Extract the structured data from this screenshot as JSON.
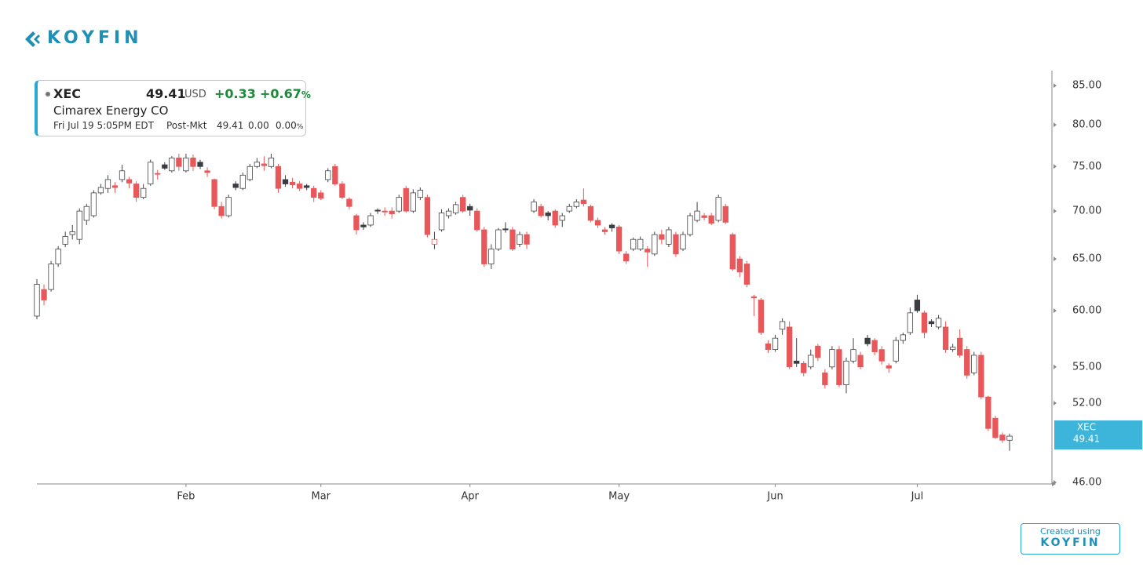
{
  "header": {
    "logo": "KOYFIN"
  },
  "quote": {
    "symbol": "XEC",
    "price": "49.41",
    "currency": "USD",
    "change": "+0.33",
    "change_pct": "+0.67",
    "pct_sign": "%",
    "name": "Cimarex Energy CO",
    "time": "Fri Jul 19 5:05PM EDT",
    "session": "Post-Mkt",
    "post_price": "49.41",
    "post_change": "0.00",
    "post_change_pct": "0.00",
    "post_pct_sign": "%"
  },
  "footer": {
    "created": "Created using",
    "logo": "KOYFIN"
  },
  "chart_data": {
    "type": "candlestick",
    "log_scale": true,
    "up_color": "#ffffff",
    "down_color": "#e8585b",
    "neutral_color": "#3a3d42",
    "axis_color": "#8a8a8a",
    "ylim": [
      46,
      87
    ],
    "yticks": [
      {
        "value": 85,
        "label": "85.00"
      },
      {
        "value": 80,
        "label": "80.00"
      },
      {
        "value": 75,
        "label": "75.00"
      },
      {
        "value": 70,
        "label": "70.00"
      },
      {
        "value": 65,
        "label": "65.00"
      },
      {
        "value": 60,
        "label": "60.00"
      },
      {
        "value": 55,
        "label": "55.00"
      },
      {
        "value": 52,
        "label": "52.00"
      },
      {
        "value": 46,
        "label": "46.00"
      }
    ],
    "last_label": {
      "name": "XEC",
      "value": 49.41
    },
    "categories": [
      null,
      null,
      null,
      null,
      null,
      null,
      null,
      null,
      null,
      null,
      null,
      null,
      null,
      null,
      null,
      null,
      null,
      null,
      null,
      null,
      null,
      "Feb",
      null,
      null,
      null,
      null,
      null,
      null,
      null,
      null,
      null,
      null,
      null,
      null,
      null,
      null,
      null,
      null,
      null,
      null,
      "Mar",
      null,
      null,
      null,
      null,
      null,
      null,
      null,
      null,
      null,
      null,
      null,
      null,
      null,
      null,
      null,
      null,
      null,
      null,
      null,
      null,
      "Apr",
      null,
      null,
      null,
      null,
      null,
      null,
      null,
      null,
      null,
      null,
      null,
      null,
      null,
      null,
      null,
      null,
      null,
      null,
      null,
      null,
      "May",
      null,
      null,
      null,
      null,
      null,
      null,
      null,
      null,
      null,
      null,
      null,
      null,
      null,
      null,
      null,
      null,
      null,
      null,
      null,
      null,
      null,
      "Jun",
      null,
      null,
      null,
      null,
      null,
      null,
      null,
      null,
      null,
      null,
      null,
      null,
      null,
      null,
      null,
      null,
      null,
      null,
      null,
      "Jul",
      null,
      null,
      null,
      null,
      null,
      null,
      null,
      null,
      null,
      null,
      null,
      null,
      null
    ],
    "open": [
      59.5,
      62,
      62,
      64.5,
      66.5,
      67.5,
      67,
      69,
      69.5,
      72,
      72.5,
      72.8,
      73.5,
      73.5,
      73,
      71.5,
      73,
      74.2,
      75.2,
      74.5,
      76,
      74.5,
      76,
      75.5,
      74.5,
      73.5,
      70.5,
      69.5,
      73,
      72.5,
      73.5,
      75,
      75.3,
      75,
      75,
      73.5,
      73.2,
      73,
      72.8,
      72.5,
      72,
      73.5,
      75,
      73,
      71.3,
      69.5,
      68.5,
      68.5,
      70.1,
      70,
      70,
      70,
      72.5,
      70,
      71.5,
      71.5,
      66.5,
      68,
      69.5,
      69.8,
      71.5,
      70.5,
      70,
      68,
      64.5,
      66,
      68.1,
      68,
      66.5,
      67.5,
      70,
      70.5,
      69.8,
      70,
      69,
      70,
      70.5,
      71.2,
      70.5,
      69,
      68,
      68.5,
      68.3,
      65.5,
      66,
      66,
      66,
      65.5,
      67.5,
      66.5,
      67.5,
      66,
      67.5,
      69,
      69.5,
      69.5,
      69,
      70.5,
      67.5,
      65,
      64.5,
      61.3,
      61,
      57,
      56.5,
      58.3,
      58.5,
      55.5,
      55.3,
      55,
      56.8,
      54.5,
      55,
      56.5,
      53.5,
      55.5,
      56,
      57.5,
      57.3,
      56.5,
      55.1,
      55.5,
      57.3,
      58,
      61,
      59.8,
      59,
      58.5,
      58.5,
      56.5,
      57.5,
      56.5,
      54.5,
      56,
      52.5,
      50.8,
      49.5,
      49.1
    ],
    "high": [
      63,
      62.5,
      64.8,
      66.3,
      67.8,
      68.5,
      70.3,
      70.8,
      72.3,
      73,
      74,
      73.2,
      75.2,
      73.8,
      73.3,
      73,
      75.8,
      74.6,
      75.5,
      76.2,
      76.5,
      76.5,
      76.4,
      75.8,
      74.9,
      73.6,
      71,
      71.8,
      73.3,
      74.3,
      75.3,
      76,
      76.2,
      76.5,
      75.3,
      74,
      73.7,
      73.3,
      73,
      72.8,
      72.3,
      74.8,
      75.3,
      73.3,
      71.5,
      69.7,
      68.8,
      69.8,
      70.3,
      70.4,
      70.4,
      71.8,
      72.8,
      72.4,
      72.6,
      71.8,
      67.8,
      70.2,
      70.3,
      71,
      71.8,
      70.8,
      70.3,
      68.3,
      66.5,
      68.2,
      68.8,
      68.3,
      67.8,
      67.8,
      71.3,
      70.8,
      70,
      70.2,
      69.8,
      70.8,
      71.3,
      72.5,
      70.7,
      69.3,
      68.3,
      68.7,
      68.5,
      65.8,
      67.2,
      67.3,
      66.3,
      67.8,
      68,
      68.3,
      67.8,
      67.8,
      69.8,
      71,
      69.8,
      69.8,
      71.8,
      70.8,
      67.7,
      65.3,
      64.8,
      61.5,
      61.2,
      57.3,
      57.8,
      59.3,
      59,
      57.5,
      55.5,
      56.5,
      57,
      54.8,
      56.8,
      56.8,
      55.8,
      57.5,
      56.3,
      57.8,
      57.5,
      56.8,
      55.3,
      57.6,
      58,
      60.3,
      61.5,
      60,
      59.2,
      59.6,
      59,
      57,
      58.3,
      56.8,
      56.3,
      56.3,
      52.6,
      51,
      49.7,
      49.6
    ],
    "low": [
      59.2,
      60.5,
      61.8,
      64.2,
      66.2,
      67,
      66.5,
      68.5,
      69.3,
      71.8,
      72,
      72,
      73.2,
      72.5,
      71,
      71.3,
      72.8,
      73.5,
      74.6,
      74.3,
      74.5,
      74.3,
      74.5,
      74.7,
      73.8,
      70.2,
      69.2,
      69.3,
      72.3,
      72.3,
      73.3,
      74.8,
      74.5,
      74.8,
      72,
      72.7,
      72.5,
      72.2,
      72.3,
      71,
      71.2,
      73.2,
      72.8,
      71.3,
      70.2,
      67.5,
      68,
      68.3,
      69.7,
      69.5,
      69.2,
      69.8,
      69.8,
      69.8,
      71.2,
      67.2,
      66,
      67.8,
      69.2,
      69.6,
      69.8,
      69.5,
      67.8,
      64.2,
      64,
      65.8,
      67.7,
      65.8,
      66.2,
      66,
      69.8,
      69.3,
      69,
      68.2,
      68.3,
      69.8,
      70.3,
      70.5,
      68.8,
      68.2,
      67.5,
      67.8,
      65.5,
      64.5,
      65.8,
      65.8,
      64.2,
      65.3,
      66.5,
      66.2,
      65.2,
      65.8,
      67.3,
      68.8,
      69,
      68.5,
      68.8,
      68.6,
      63.8,
      63.2,
      62.2,
      59.5,
      57.8,
      56.2,
      56.3,
      57.8,
      54.8,
      55,
      54.2,
      54.8,
      55.5,
      53.2,
      54.8,
      53.3,
      52.8,
      55.3,
      54.8,
      56.8,
      56,
      55.2,
      54.5,
      55.3,
      57,
      57.8,
      59.8,
      57.5,
      58.5,
      58.3,
      56.2,
      56.3,
      55.8,
      54,
      54.3,
      52.3,
      49.8,
      49.2,
      48.9,
      48.3
    ],
    "close": [
      62.5,
      61,
      64.5,
      66,
      67.3,
      67.8,
      70,
      70.5,
      72,
      72.6,
      73.5,
      72.6,
      74.5,
      73.1,
      71.5,
      72.5,
      75.5,
      74.1,
      74.8,
      76,
      75,
      76,
      75,
      75,
      74.3,
      70.5,
      69.5,
      71.5,
      72.6,
      74,
      75,
      75.5,
      75.1,
      76,
      72.5,
      73,
      72.9,
      72.5,
      72.6,
      71.5,
      71.4,
      74.5,
      73,
      71.5,
      70.5,
      68,
      68.3,
      69.5,
      70,
      69.9,
      69.7,
      71.5,
      70,
      72,
      72.3,
      67.5,
      67,
      69.8,
      70,
      70.7,
      70,
      70.1,
      68,
      64.5,
      66,
      68,
      68,
      66,
      67.5,
      66.5,
      71,
      69.5,
      69.5,
      68.5,
      69.5,
      70.5,
      71,
      70.8,
      69,
      68.5,
      67.8,
      68.2,
      65.8,
      64.8,
      67,
      67,
      65.7,
      67.5,
      67,
      68,
      65.5,
      67.5,
      69.5,
      70,
      69.3,
      68.7,
      71.5,
      68.8,
      64,
      63.7,
      62.5,
      61.2,
      58,
      56.5,
      57.5,
      59,
      55,
      55.3,
      54.5,
      56,
      55.8,
      53.5,
      56.5,
      53.5,
      55.5,
      56.5,
      55,
      57,
      56.3,
      55.5,
      54.9,
      57.3,
      57.8,
      59.8,
      60,
      58,
      58.8,
      59.3,
      56.5,
      56.7,
      56,
      54.3,
      56,
      52.5,
      50,
      49.3,
      49.1,
      49.41
    ]
  }
}
